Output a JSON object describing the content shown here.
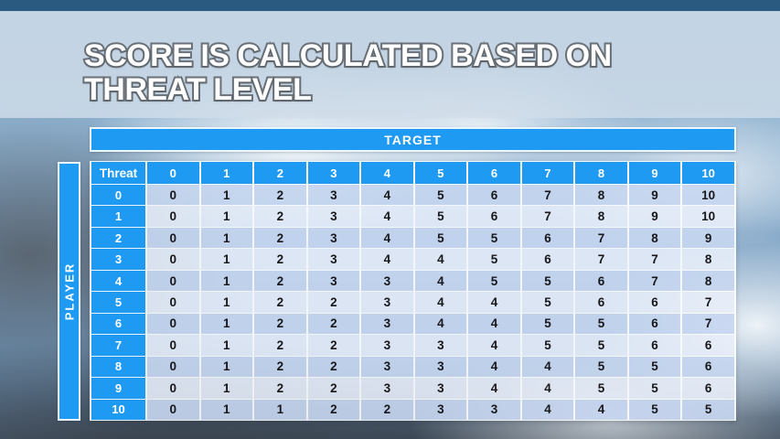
{
  "slide": {
    "title": {
      "line1": "SCORE IS CALCULATED BASED ON",
      "line2": "THREAT LEVEL"
    }
  },
  "table": {
    "target_label": "TARGET",
    "player_label": "PLAYER",
    "corner_label": "Threat",
    "column_headers": [
      "0",
      "1",
      "2",
      "3",
      "4",
      "5",
      "6",
      "7",
      "8",
      "9",
      "10"
    ],
    "rows": [
      {
        "label": "0",
        "values": [
          0,
          1,
          2,
          3,
          4,
          5,
          6,
          7,
          8,
          9,
          10
        ]
      },
      {
        "label": "1",
        "values": [
          0,
          1,
          2,
          3,
          4,
          5,
          6,
          7,
          8,
          9,
          10
        ]
      },
      {
        "label": "2",
        "values": [
          0,
          1,
          2,
          3,
          4,
          5,
          5,
          6,
          7,
          8,
          9
        ]
      },
      {
        "label": "3",
        "values": [
          0,
          1,
          2,
          3,
          4,
          4,
          5,
          6,
          7,
          7,
          8
        ]
      },
      {
        "label": "4",
        "values": [
          0,
          1,
          2,
          3,
          3,
          4,
          5,
          5,
          6,
          7,
          8
        ]
      },
      {
        "label": "5",
        "values": [
          0,
          1,
          2,
          2,
          3,
          4,
          4,
          5,
          6,
          6,
          7
        ]
      },
      {
        "label": "6",
        "values": [
          0,
          1,
          2,
          2,
          3,
          4,
          4,
          5,
          5,
          6,
          7
        ]
      },
      {
        "label": "7",
        "values": [
          0,
          1,
          2,
          2,
          3,
          3,
          4,
          5,
          5,
          6,
          6
        ]
      },
      {
        "label": "8",
        "values": [
          0,
          1,
          2,
          2,
          3,
          3,
          4,
          4,
          5,
          5,
          6
        ]
      },
      {
        "label": "9",
        "values": [
          0,
          1,
          2,
          2,
          3,
          3,
          4,
          4,
          5,
          5,
          6
        ]
      },
      {
        "label": "10",
        "values": [
          0,
          1,
          1,
          2,
          2,
          3,
          3,
          4,
          4,
          5,
          5
        ]
      }
    ]
  },
  "chart_data": {
    "type": "table",
    "title": "SCORE IS CALCULATED BASED ON THREAT LEVEL",
    "column_axis_label": "TARGET",
    "row_axis_label": "PLAYER",
    "row_header": "Threat",
    "columns": [
      "0",
      "1",
      "2",
      "3",
      "4",
      "5",
      "6",
      "7",
      "8",
      "9",
      "10"
    ],
    "row_labels": [
      "0",
      "1",
      "2",
      "3",
      "4",
      "5",
      "6",
      "7",
      "8",
      "9",
      "10"
    ],
    "matrix": [
      [
        0,
        1,
        2,
        3,
        4,
        5,
        6,
        7,
        8,
        9,
        10
      ],
      [
        0,
        1,
        2,
        3,
        4,
        5,
        6,
        7,
        8,
        9,
        10
      ],
      [
        0,
        1,
        2,
        3,
        4,
        5,
        5,
        6,
        7,
        8,
        9
      ],
      [
        0,
        1,
        2,
        3,
        4,
        4,
        5,
        6,
        7,
        7,
        8
      ],
      [
        0,
        1,
        2,
        3,
        3,
        4,
        5,
        5,
        6,
        7,
        8
      ],
      [
        0,
        1,
        2,
        2,
        3,
        4,
        4,
        5,
        6,
        6,
        7
      ],
      [
        0,
        1,
        2,
        2,
        3,
        4,
        4,
        5,
        5,
        6,
        7
      ],
      [
        0,
        1,
        2,
        2,
        3,
        3,
        4,
        5,
        5,
        6,
        6
      ],
      [
        0,
        1,
        2,
        2,
        3,
        3,
        4,
        4,
        5,
        5,
        6
      ],
      [
        0,
        1,
        2,
        2,
        3,
        3,
        4,
        4,
        5,
        5,
        6
      ],
      [
        0,
        1,
        1,
        2,
        2,
        3,
        3,
        4,
        4,
        5,
        5
      ]
    ]
  },
  "colors": {
    "accent_blue": "#1f9af2",
    "row_band_dark": "#c8d7f1",
    "row_band_light": "#e9effa",
    "table_text": "#17171a",
    "header_text": "#ffffff",
    "title_text": "#ffffff",
    "title_outline": "#62686f",
    "title_band": "#d1dde9",
    "sky_top_strip": "#2a5a80"
  }
}
